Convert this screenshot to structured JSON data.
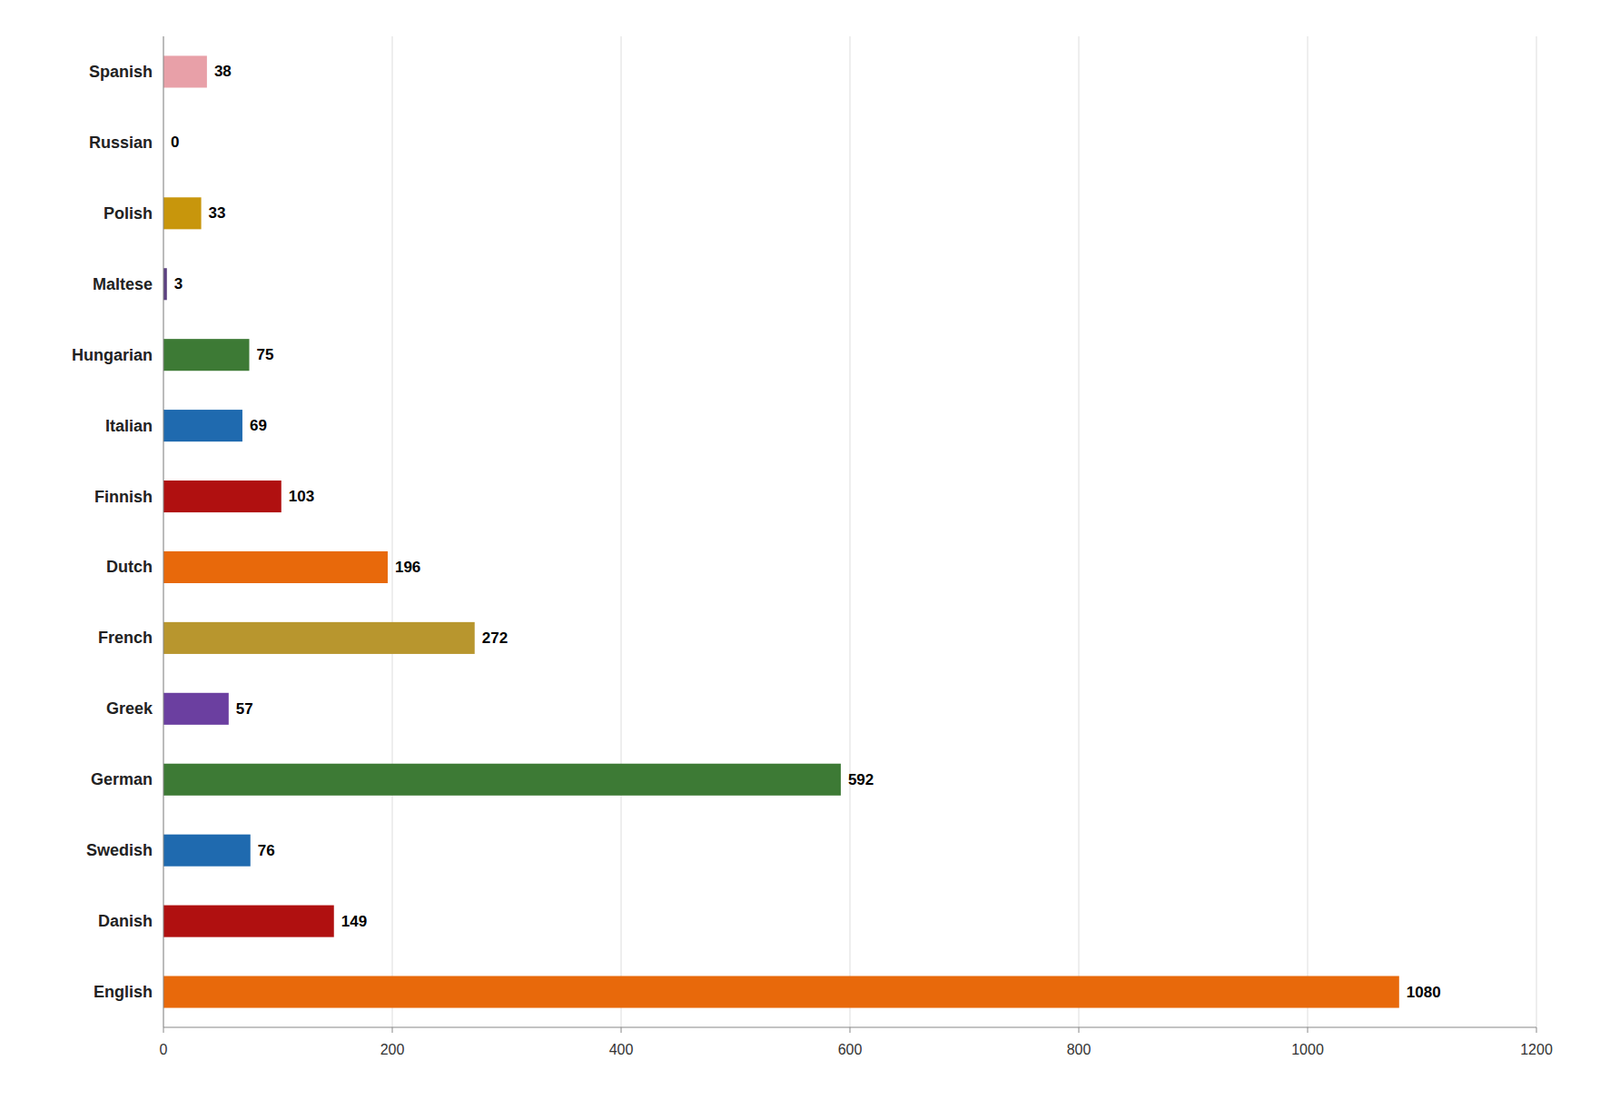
{
  "chart_data": {
    "type": "bar",
    "orientation": "horizontal",
    "categories": [
      "English",
      "Danish",
      "Swedish",
      "German",
      "Greek",
      "French",
      "Dutch",
      "Finnish",
      "Italian",
      "Hungarian",
      "Maltese",
      "Polish",
      "Russian",
      "Spanish"
    ],
    "values": [
      1080,
      149,
      76,
      592,
      57,
      272,
      196,
      103,
      69,
      75,
      3,
      33,
      0,
      38
    ],
    "colors": [
      "#E8690B",
      "#B01010",
      "#1F6AAF",
      "#3D7A35",
      "#6B3FA0",
      "#B8962E",
      "#E8690B",
      "#B01010",
      "#1F6AAF",
      "#3D7A35",
      "#5B4080",
      "#C8960C",
      "#C0C0C0",
      "#E8A0A8"
    ],
    "xlim": [
      0,
      1200
    ],
    "xticks": [
      0,
      200,
      400,
      600,
      800,
      1000,
      1200
    ],
    "grid": true,
    "data_labels": true
  }
}
